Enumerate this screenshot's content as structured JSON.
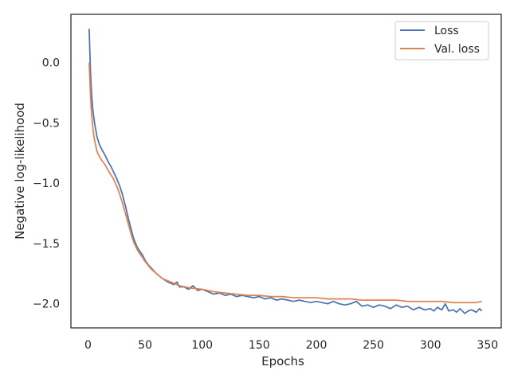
{
  "chart_data": {
    "type": "line",
    "xlabel": "Epochs",
    "ylabel": "Negative log-likelihood",
    "xlim": [
      -15,
      362
    ],
    "ylim": [
      -2.2,
      0.4
    ],
    "xticks": [
      0,
      50,
      100,
      150,
      200,
      250,
      300,
      350
    ],
    "yticks": [
      0.0,
      -0.5,
      -1.0,
      -1.5,
      -2.0
    ],
    "ytick_labels": [
      "0.0",
      "−0.5",
      "−1.0",
      "−1.5",
      "−2.0"
    ],
    "grid": false,
    "legend_position": "top-right",
    "series": [
      {
        "name": "Loss",
        "color": "#4c72b0",
        "x": [
          1,
          2,
          3,
          4,
          5,
          6,
          8,
          10,
          12,
          15,
          18,
          20,
          22,
          25,
          28,
          30,
          33,
          35,
          38,
          40,
          43,
          45,
          48,
          50,
          53,
          55,
          58,
          60,
          65,
          70,
          75,
          78,
          80,
          84,
          88,
          92,
          96,
          100,
          105,
          110,
          115,
          120,
          125,
          130,
          135,
          140,
          145,
          150,
          155,
          160,
          165,
          170,
          175,
          180,
          185,
          190,
          195,
          200,
          205,
          210,
          215,
          220,
          225,
          230,
          235,
          240,
          245,
          250,
          255,
          260,
          265,
          270,
          275,
          280,
          285,
          290,
          295,
          300,
          303,
          306,
          310,
          313,
          316,
          320,
          323,
          326,
          330,
          333,
          336,
          340,
          343,
          345
        ],
        "y": [
          0.28,
          -0.05,
          -0.25,
          -0.37,
          -0.45,
          -0.52,
          -0.62,
          -0.68,
          -0.72,
          -0.77,
          -0.83,
          -0.86,
          -0.9,
          -0.96,
          -1.03,
          -1.09,
          -1.2,
          -1.28,
          -1.39,
          -1.46,
          -1.53,
          -1.56,
          -1.6,
          -1.64,
          -1.68,
          -1.7,
          -1.73,
          -1.75,
          -1.79,
          -1.82,
          -1.84,
          -1.82,
          -1.86,
          -1.86,
          -1.88,
          -1.85,
          -1.89,
          -1.88,
          -1.9,
          -1.92,
          -1.91,
          -1.93,
          -1.92,
          -1.94,
          -1.93,
          -1.94,
          -1.95,
          -1.94,
          -1.96,
          -1.95,
          -1.97,
          -1.96,
          -1.97,
          -1.98,
          -1.97,
          -1.98,
          -1.99,
          -1.98,
          -1.99,
          -2.0,
          -1.98,
          -2.0,
          -2.01,
          -2.0,
          -1.98,
          -2.02,
          -2.01,
          -2.03,
          -2.01,
          -2.02,
          -2.04,
          -2.01,
          -2.03,
          -2.02,
          -2.05,
          -2.03,
          -2.05,
          -2.04,
          -2.06,
          -2.03,
          -2.05,
          -2.0,
          -2.06,
          -2.05,
          -2.07,
          -2.04,
          -2.08,
          -2.06,
          -2.05,
          -2.07,
          -2.04,
          -2.06
        ]
      },
      {
        "name": "Val. loss",
        "color": "#dd8452",
        "x": [
          1,
          2,
          3,
          4,
          5,
          6,
          8,
          10,
          12,
          15,
          18,
          20,
          22,
          25,
          28,
          30,
          33,
          35,
          38,
          40,
          43,
          45,
          48,
          50,
          55,
          60,
          65,
          70,
          75,
          80,
          90,
          100,
          110,
          120,
          130,
          140,
          150,
          160,
          170,
          180,
          190,
          200,
          210,
          220,
          230,
          240,
          250,
          260,
          270,
          280,
          290,
          300,
          310,
          320,
          330,
          340,
          345
        ],
        "y": [
          0.0,
          -0.25,
          -0.42,
          -0.52,
          -0.6,
          -0.66,
          -0.74,
          -0.78,
          -0.81,
          -0.85,
          -0.9,
          -0.93,
          -0.96,
          -1.02,
          -1.1,
          -1.16,
          -1.26,
          -1.33,
          -1.43,
          -1.49,
          -1.55,
          -1.58,
          -1.62,
          -1.65,
          -1.71,
          -1.75,
          -1.79,
          -1.81,
          -1.83,
          -1.85,
          -1.87,
          -1.88,
          -1.9,
          -1.91,
          -1.92,
          -1.93,
          -1.93,
          -1.94,
          -1.94,
          -1.95,
          -1.95,
          -1.95,
          -1.96,
          -1.96,
          -1.96,
          -1.97,
          -1.97,
          -1.97,
          -1.97,
          -1.98,
          -1.98,
          -1.98,
          -1.98,
          -1.99,
          -1.99,
          -1.99,
          -1.98
        ]
      }
    ]
  }
}
